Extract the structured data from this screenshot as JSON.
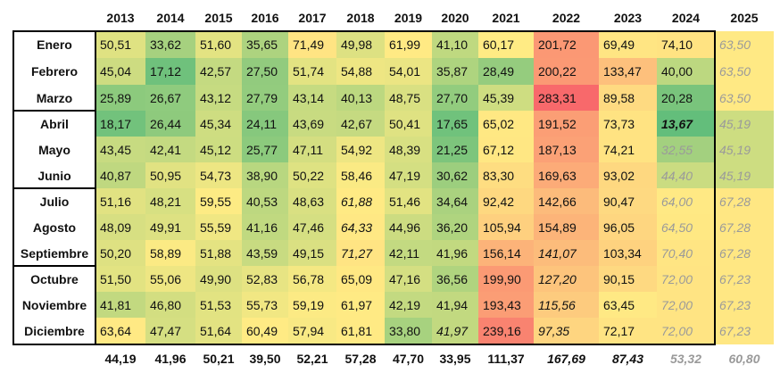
{
  "chart_data": {
    "type": "heatmap",
    "columns": [
      "2013",
      "2014",
      "2015",
      "2016",
      "2017",
      "2018",
      "2019",
      "2020",
      "2021",
      "2022",
      "2023",
      "2024",
      "2025"
    ],
    "rows": [
      "Enero",
      "Febrero",
      "Marzo",
      "Abril",
      "Mayo",
      "Junio",
      "Julio",
      "Agosto",
      "Septiembre",
      "Octubre",
      "Noviembre",
      "Diciembre"
    ],
    "values": [
      [
        "50,51",
        "33,62",
        "51,60",
        "35,65",
        "71,49",
        "49,98",
        "61,99",
        "41,10",
        "60,17",
        "201,72",
        "69,49",
        "74,10",
        "63,50"
      ],
      [
        "45,04",
        "17,12",
        "42,57",
        "27,50",
        "51,74",
        "54,88",
        "54,01",
        "35,87",
        "28,49",
        "200,22",
        "133,47",
        "40,00",
        "63,50"
      ],
      [
        "25,89",
        "26,67",
        "43,12",
        "27,79",
        "43,14",
        "40,13",
        "48,75",
        "27,70",
        "45,39",
        "283,31",
        "89,58",
        "20,28",
        "63,50"
      ],
      [
        "18,17",
        "26,44",
        "45,34",
        "24,11",
        "43,69",
        "42,67",
        "50,41",
        "17,65",
        "65,02",
        "191,52",
        "73,73",
        "13,67",
        "45,19"
      ],
      [
        "43,45",
        "42,41",
        "45,12",
        "25,77",
        "47,11",
        "54,92",
        "48,39",
        "21,25",
        "67,12",
        "187,13",
        "74,21",
        "32,55",
        "45,19"
      ],
      [
        "40,87",
        "50,95",
        "54,73",
        "38,90",
        "50,22",
        "58,46",
        "47,19",
        "30,62",
        "83,30",
        "169,63",
        "93,02",
        "44,40",
        "45,19"
      ],
      [
        "51,16",
        "48,21",
        "59,55",
        "40,53",
        "48,63",
        "61,88",
        "51,46",
        "34,64",
        "92,42",
        "142,66",
        "90,47",
        "64,00",
        "67,28"
      ],
      [
        "48,09",
        "49,91",
        "55,59",
        "41,16",
        "47,46",
        "64,33",
        "44,96",
        "36,20",
        "105,94",
        "154,89",
        "96,05",
        "64,50",
        "67,28"
      ],
      [
        "50,20",
        "58,89",
        "51,88",
        "43,59",
        "49,15",
        "71,27",
        "42,11",
        "41,96",
        "156,14",
        "141,07",
        "103,34",
        "70,40",
        "67,28"
      ],
      [
        "51,50",
        "55,06",
        "49,90",
        "52,83",
        "56,78",
        "65,09",
        "47,16",
        "36,56",
        "199,90",
        "127,20",
        "90,15",
        "72,00",
        "67,23"
      ],
      [
        "41,81",
        "46,80",
        "51,53",
        "55,73",
        "59,19",
        "61,97",
        "42,19",
        "41,94",
        "193,43",
        "115,56",
        "63,45",
        "72,00",
        "67,23"
      ],
      [
        "63,64",
        "47,47",
        "51,64",
        "60,49",
        "57,94",
        "61,81",
        "33,80",
        "41,97",
        "239,16",
        "97,35",
        "72,17",
        "72,00",
        "67,23"
      ]
    ],
    "styles": [
      [
        "",
        "",
        "",
        "",
        "",
        "",
        "",
        "",
        "",
        "",
        "",
        "",
        "g"
      ],
      [
        "",
        "",
        "",
        "",
        "",
        "",
        "",
        "",
        "",
        "",
        "",
        "",
        "g"
      ],
      [
        "",
        "",
        "",
        "",
        "",
        "",
        "",
        "",
        "",
        "",
        "",
        "",
        "g"
      ],
      [
        "",
        "",
        "",
        "",
        "",
        "",
        "",
        "",
        "",
        "",
        "",
        "bi",
        "g"
      ],
      [
        "",
        "",
        "",
        "",
        "",
        "",
        "",
        "",
        "",
        "",
        "",
        "g",
        "g"
      ],
      [
        "",
        "",
        "",
        "",
        "",
        "",
        "",
        "",
        "",
        "",
        "",
        "g",
        "g"
      ],
      [
        "",
        "",
        "",
        "",
        "",
        "i",
        "",
        "",
        "",
        "",
        "",
        "g",
        "g"
      ],
      [
        "",
        "",
        "",
        "",
        "",
        "i",
        "",
        "",
        "",
        "",
        "",
        "g",
        "g"
      ],
      [
        "",
        "",
        "",
        "",
        "",
        "i",
        "",
        "",
        "",
        "i",
        "",
        "g",
        "g"
      ],
      [
        "",
        "",
        "",
        "",
        "",
        "",
        "",
        "",
        "",
        "i",
        "",
        "g",
        "g"
      ],
      [
        "",
        "",
        "",
        "",
        "",
        "",
        "",
        "",
        "",
        "i",
        "",
        "g",
        "g"
      ],
      [
        "",
        "",
        "",
        "",
        "",
        "",
        "",
        "i",
        "",
        "i",
        "",
        "g",
        "g"
      ]
    ],
    "totals": [
      "44,19",
      "41,96",
      "50,21",
      "39,50",
      "52,21",
      "57,28",
      "47,70",
      "33,95",
      "111,37",
      "167,69",
      "87,43",
      "53,32",
      "60,80"
    ],
    "totals_styles": [
      "",
      "",
      "",
      "",
      "",
      "",
      "",
      "",
      "",
      "i",
      "i",
      "g",
      "g"
    ],
    "color_scale": {
      "low": "#63be7b",
      "mid": "#ffeb84",
      "high": "#f8696b",
      "mid_value": 60,
      "max_value": 283.31
    },
    "grey_color": "#9a9a9a"
  }
}
